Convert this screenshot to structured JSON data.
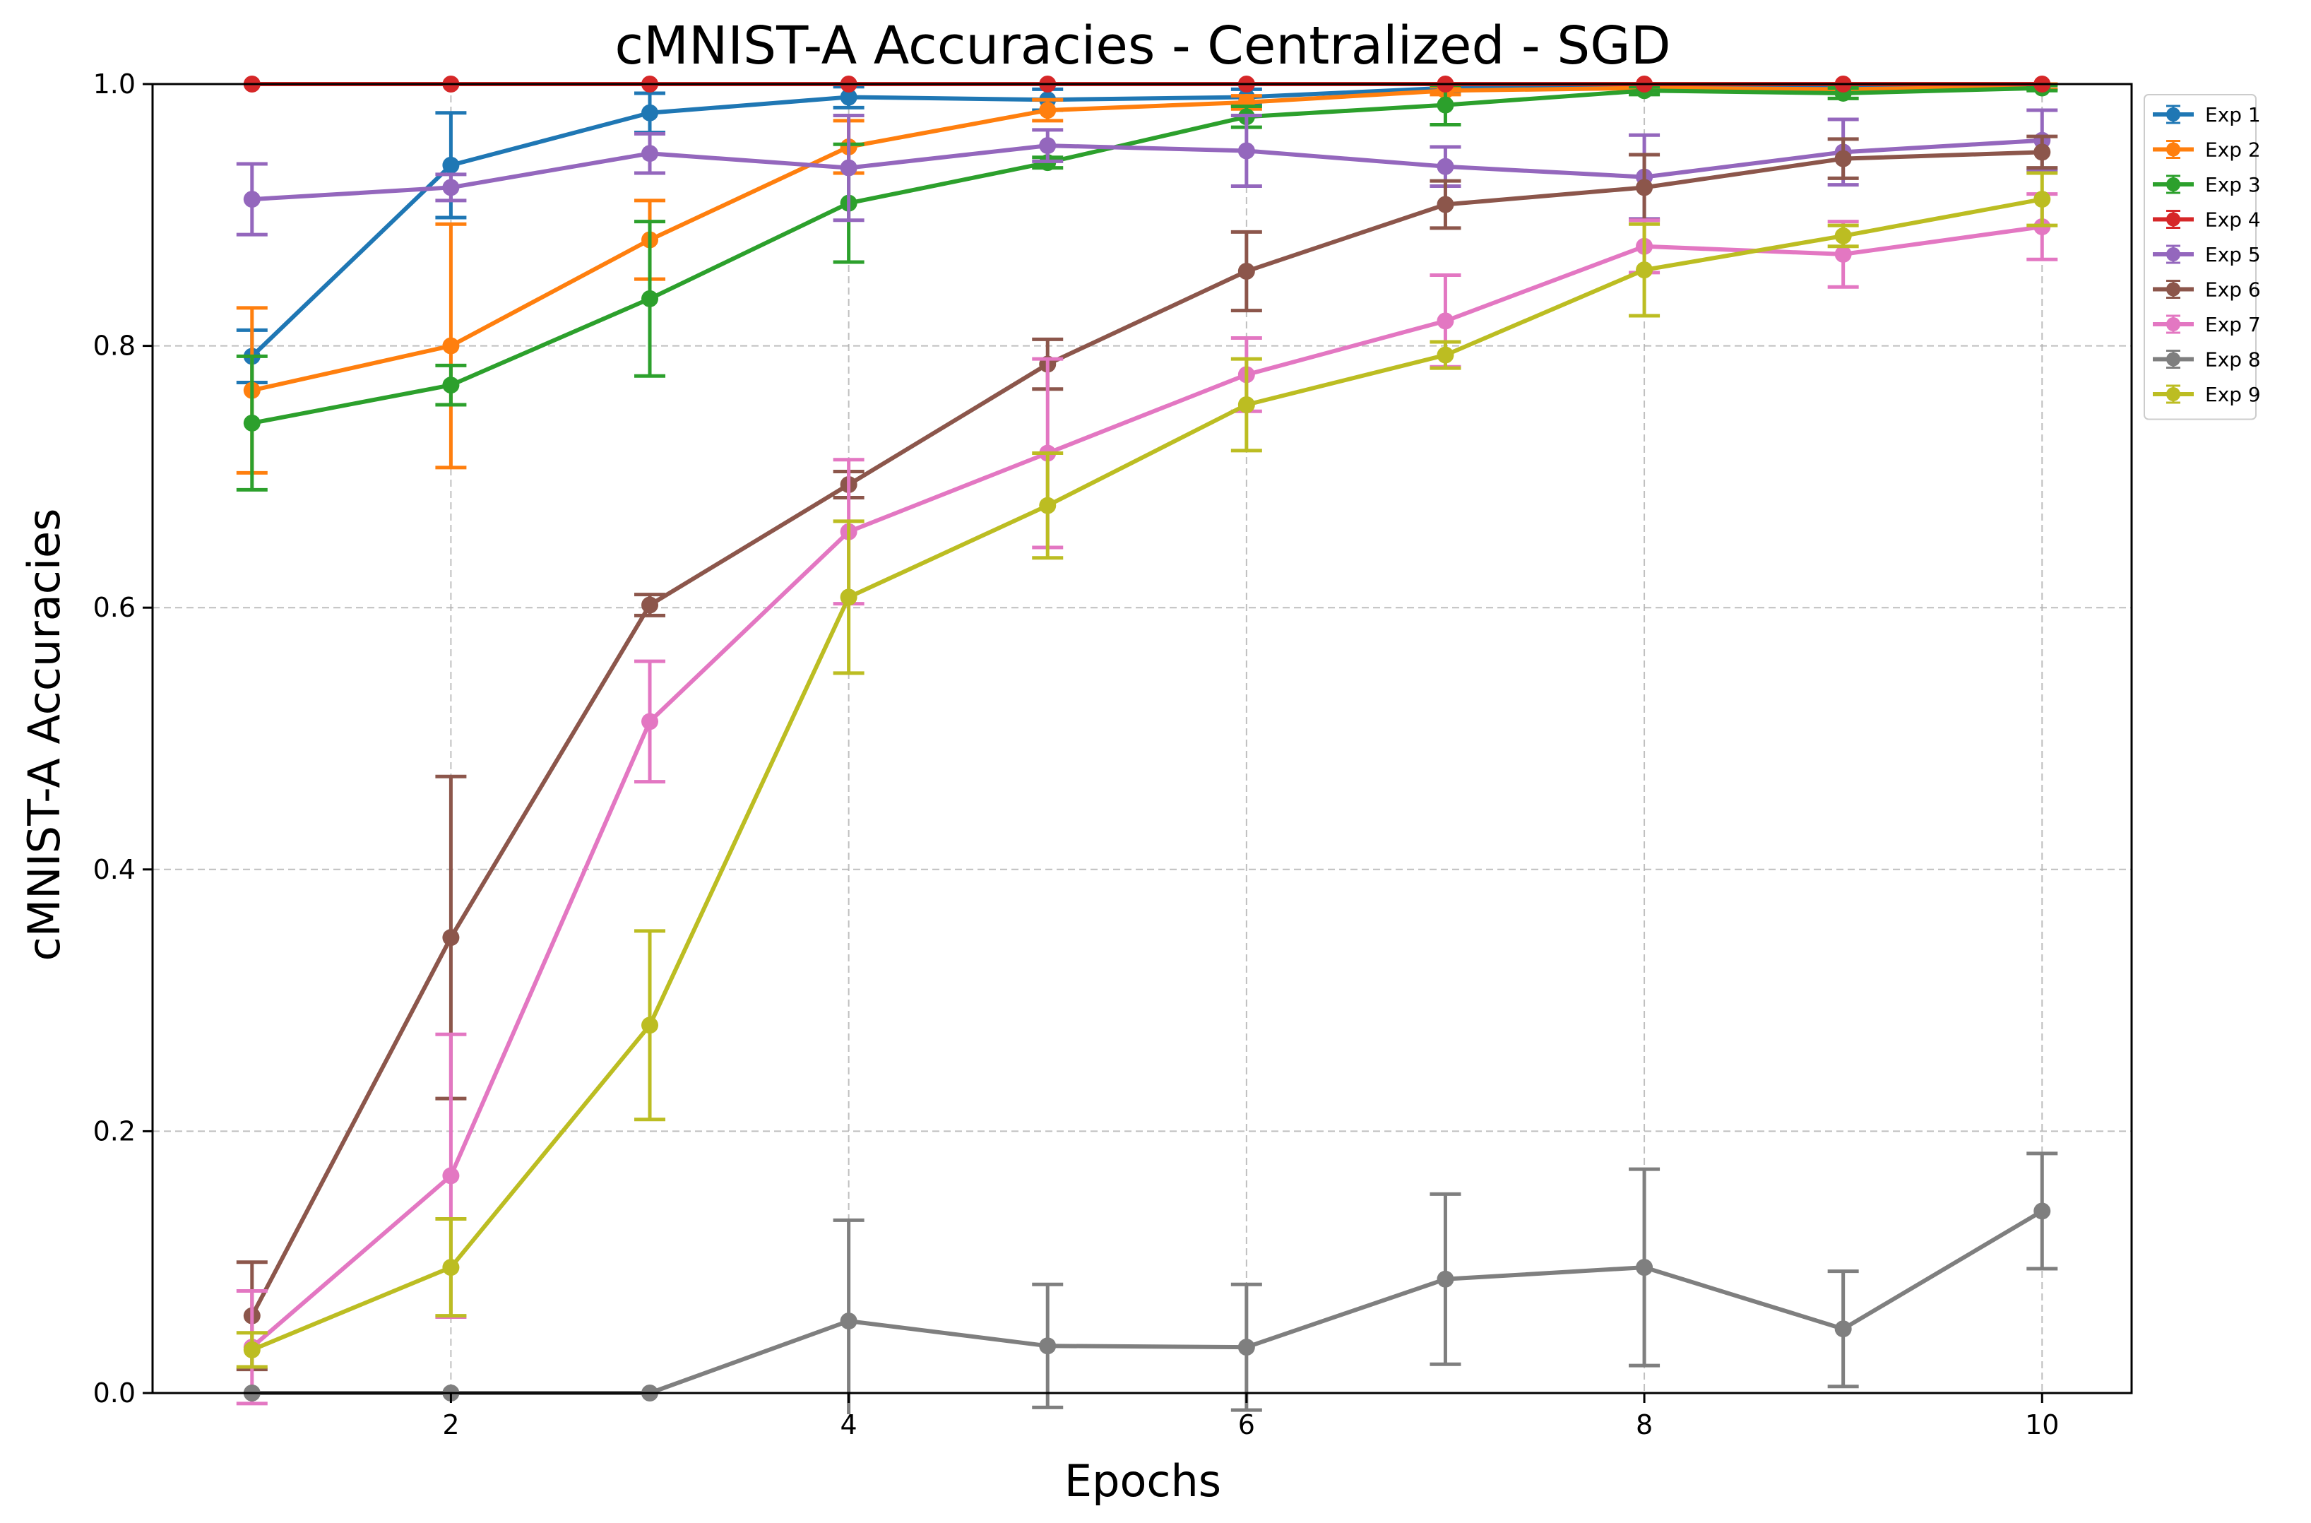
{
  "chart_data": {
    "type": "line",
    "title": "cMNIST-A Accuracies - Centralized - SGD",
    "xlabel": "Epochs",
    "ylabel": "cMNIST-A Accuracies",
    "xlim": [
      0.5,
      10.45
    ],
    "ylim": [
      0.0,
      1.0
    ],
    "xticks": [
      2,
      4,
      6,
      8,
      10
    ],
    "yticks": [
      0.0,
      0.2,
      0.4,
      0.6,
      0.8,
      1.0
    ],
    "xtick_labels": [
      "2",
      "4",
      "6",
      "8",
      "10"
    ],
    "ytick_labels": [
      "0.0",
      "0.2",
      "0.4",
      "0.6",
      "0.8",
      "1.0"
    ],
    "grid": true,
    "legend_position": "outside-top-right",
    "x": [
      1,
      2,
      3,
      4,
      5,
      6,
      7,
      8,
      9,
      10
    ],
    "series": [
      {
        "name": "Exp 1",
        "color": "#1f77b4",
        "values": [
          0.792,
          0.938,
          0.978,
          0.99,
          0.988,
          0.99,
          0.997,
          0.998,
          0.997,
          0.998
        ],
        "errors": [
          0.02,
          0.04,
          0.015,
          0.008,
          0.008,
          0.006,
          0.003,
          0.002,
          0.002,
          0.002
        ]
      },
      {
        "name": "Exp 2",
        "color": "#ff7f0e",
        "values": [
          0.766,
          0.8,
          0.881,
          0.952,
          0.98,
          0.986,
          0.995,
          0.997,
          0.996,
          0.998
        ],
        "errors": [
          0.063,
          0.093,
          0.03,
          0.02,
          0.008,
          0.005,
          0.003,
          0.002,
          0.002,
          0.002
        ]
      },
      {
        "name": "Exp 3",
        "color": "#2ca02c",
        "values": [
          0.741,
          0.77,
          0.836,
          0.909,
          0.94,
          0.975,
          0.984,
          0.995,
          0.993,
          0.997
        ],
        "errors": [
          0.051,
          0.015,
          0.059,
          0.045,
          0.004,
          0.008,
          0.015,
          0.003,
          0.004,
          0.002
        ]
      },
      {
        "name": "Exp 4",
        "color": "#d62728",
        "values": [
          1.0,
          1.0,
          1.0,
          1.0,
          1.0,
          1.0,
          1.0,
          1.0,
          1.0,
          1.0
        ],
        "errors": [
          0,
          0,
          0,
          0,
          0,
          0,
          0,
          0,
          0,
          0
        ]
      },
      {
        "name": "Exp 5",
        "color": "#9467bd",
        "values": [
          0.912,
          0.921,
          0.947,
          0.936,
          0.953,
          0.949,
          0.937,
          0.929,
          0.948,
          0.957
        ],
        "errors": [
          0.027,
          0.01,
          0.015,
          0.04,
          0.012,
          0.027,
          0.015,
          0.032,
          0.025,
          0.023
        ]
      },
      {
        "name": "Exp 6",
        "color": "#8c564b",
        "values": [
          0.059,
          0.348,
          0.602,
          0.694,
          0.786,
          0.857,
          0.908,
          0.921,
          0.943,
          0.948
        ],
        "errors": [
          0.041,
          0.123,
          0.008,
          0.01,
          0.019,
          0.03,
          0.018,
          0.025,
          0.015,
          0.012
        ]
      },
      {
        "name": "Exp 7",
        "color": "#e377c2",
        "values": [
          0.035,
          0.166,
          0.513,
          0.658,
          0.718,
          0.778,
          0.819,
          0.876,
          0.87,
          0.891
        ],
        "errors": [
          0.043,
          0.108,
          0.046,
          0.055,
          0.072,
          0.028,
          0.035,
          0.02,
          0.025,
          0.025
        ]
      },
      {
        "name": "Exp 8",
        "color": "#7f7f7f",
        "values": [
          0.0,
          0.0,
          0.0,
          0.055,
          0.036,
          0.035,
          0.087,
          0.096,
          0.049,
          0.139
        ],
        "errors": [
          0,
          0,
          0,
          0.077,
          0.047,
          0.048,
          0.065,
          0.075,
          0.044,
          0.044
        ]
      },
      {
        "name": "Exp 9",
        "color": "#bcbd22",
        "values": [
          0.033,
          0.096,
          0.281,
          0.608,
          0.678,
          0.755,
          0.793,
          0.858,
          0.884,
          0.912
        ],
        "errors": [
          0.013,
          0.037,
          0.072,
          0.058,
          0.04,
          0.035,
          0.01,
          0.035,
          0.008,
          0.02
        ]
      }
    ]
  }
}
